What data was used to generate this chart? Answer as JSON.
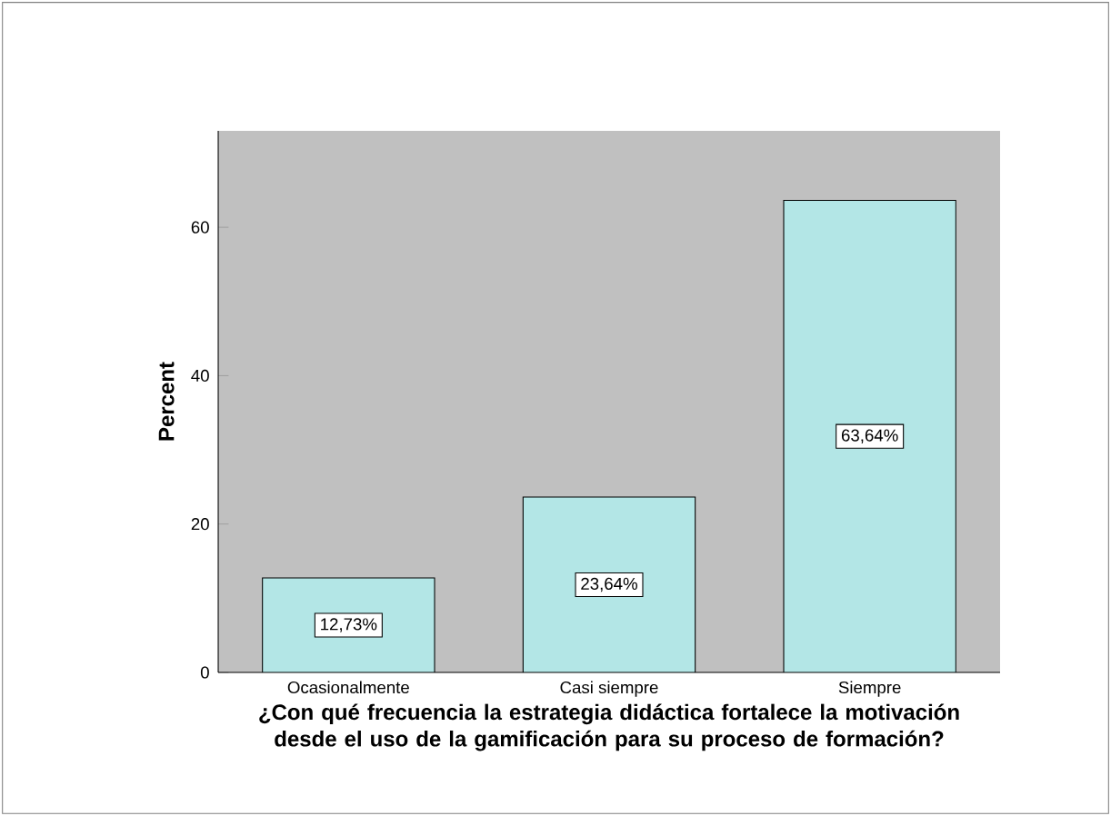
{
  "chart_data": {
    "type": "bar",
    "xlabel": "¿Con qué frecuencia la estrategia didáctica fortalece la motivación desde el uso de la gamificación para su proceso de formación?",
    "ylabel": "Percent",
    "categories": [
      "Ocasionalmente",
      "Casi siempre",
      "Siempre"
    ],
    "values": [
      12.73,
      23.64,
      63.64
    ],
    "value_labels": [
      "12,73%",
      "23,64%",
      "63,64%"
    ],
    "color": "#b3e6e6",
    "ylim": [
      0,
      73
    ],
    "yticks": [
      0,
      20,
      40,
      60
    ],
    "grid": false
  }
}
